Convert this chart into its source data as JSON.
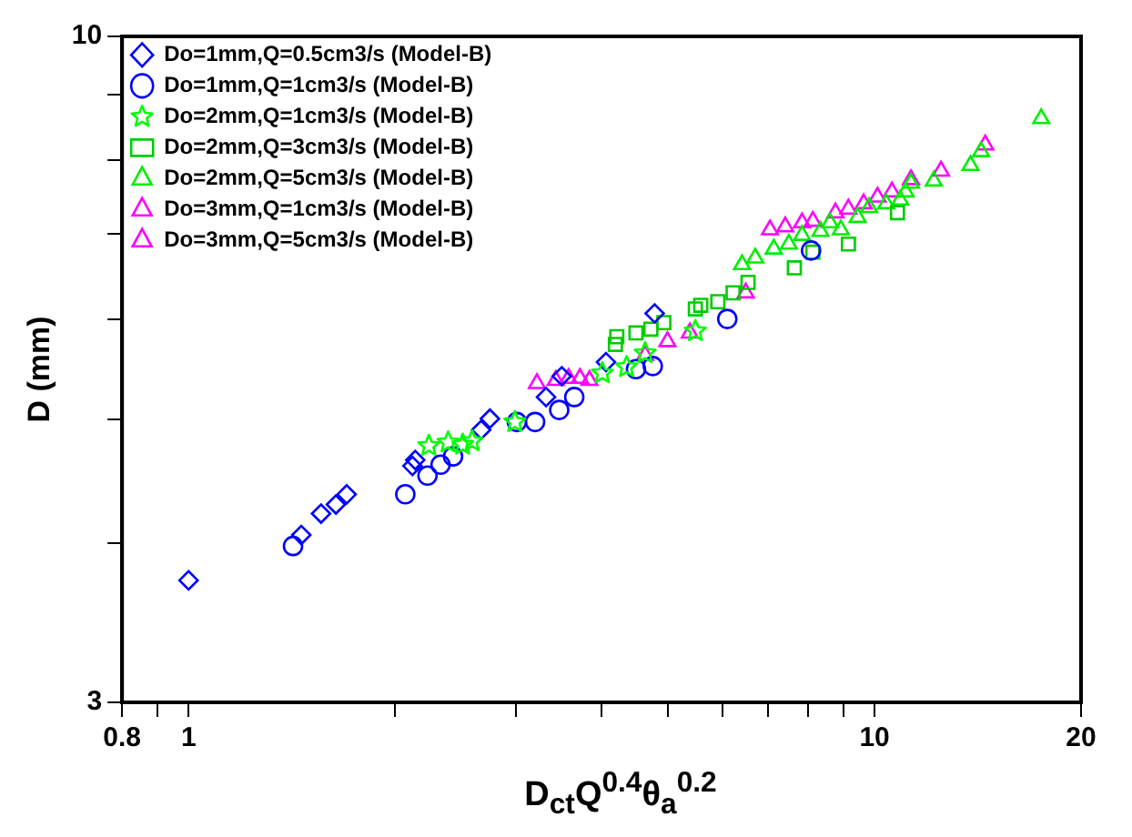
{
  "chart_data": {
    "type": "scatter",
    "xlabel": "D$_{ct}$Q$^{0.4}$θ$_{a}$$^{0.2}$",
    "ylabel": "D (mm)",
    "log": "xy",
    "grid": false,
    "legend": "top left",
    "xlim": [
      0.8,
      20.0
    ],
    "xticks": [
      0.8,
      {
        "value": 0.9,
        "label": null
      },
      1,
      {
        "value": 2,
        "label": null
      },
      {
        "value": 3,
        "label": null
      },
      {
        "value": 4,
        "label": null
      },
      {
        "value": 5,
        "label": null
      },
      {
        "value": 6,
        "label": null
      },
      {
        "value": 7,
        "label": null
      },
      {
        "value": 8,
        "label": null
      },
      {
        "value": 9,
        "label": null
      },
      10,
      20
    ],
    "ylim": [
      3,
      10
    ],
    "yticks": [
      3,
      {
        "value": 4,
        "label": null
      },
      {
        "value": 5,
        "label": null
      },
      {
        "value": 6,
        "label": null
      },
      {
        "value": 7,
        "label": null
      },
      {
        "value": 8,
        "label": null
      },
      {
        "value": 9,
        "label": null
      },
      10
    ],
    "series": [
      {
        "name": "Do=1mm,Q=0.5cm3/s (Model-B)",
        "color": "#0000ff",
        "marker": "diamond",
        "x": [
          1.0,
          1.46,
          1.56,
          1.64,
          1.7,
          2.12,
          2.14,
          2.67,
          2.75,
          3.32,
          3.5,
          4.06,
          4.78
        ],
        "values": [
          3.74,
          4.06,
          4.22,
          4.29,
          4.37,
          4.6,
          4.65,
          4.91,
          5.01,
          5.21,
          5.41,
          5.55,
          6.06
        ]
      },
      {
        "name": "Do=1mm,Q=1cm3/s (Model-B)",
        "color": "#0000ff",
        "marker": "circle",
        "x": [
          1.42,
          2.07,
          2.23,
          2.33,
          2.43,
          3.01,
          3.2,
          3.47,
          3.65,
          4.49,
          4.75,
          6.1,
          8.08
        ],
        "values": [
          3.98,
          4.37,
          4.52,
          4.61,
          4.68,
          4.98,
          4.98,
          5.09,
          5.21,
          5.48,
          5.51,
          6.0,
          6.79
        ]
      },
      {
        "name": "Do=2mm,Q=1cm3/s (Model-B)",
        "color": "#00ff00",
        "marker": "star",
        "x": [
          2.24,
          2.39,
          2.51,
          2.59,
          2.99,
          4.01,
          4.35,
          4.63,
          5.48
        ],
        "values": [
          4.77,
          4.8,
          4.78,
          4.81,
          4.98,
          5.44,
          5.5,
          5.64,
          5.87
        ]
      },
      {
        "name": "Do=2mm,Q=3cm3/s (Model-B)",
        "color": "#00cc00",
        "marker": "square",
        "x": [
          4.19,
          4.21,
          4.49,
          4.72,
          4.93,
          5.48,
          5.58,
          5.91,
          6.22,
          6.54,
          7.64,
          8.13,
          9.16,
          10.8
        ],
        "values": [
          5.73,
          5.81,
          5.85,
          5.89,
          5.96,
          6.11,
          6.15,
          6.19,
          6.29,
          6.41,
          6.58,
          6.77,
          6.87,
          7.27
        ]
      },
      {
        "name": "Do=2mm,Q=5cm3/s (Model-B)",
        "color": "#00ee00",
        "marker": "triangle",
        "x": [
          6.41,
          6.7,
          7.13,
          7.5,
          7.84,
          8.34,
          8.61,
          8.93,
          9.45,
          9.82,
          10.4,
          10.9,
          11.1,
          11.3,
          12.2,
          13.8,
          14.3,
          17.5
        ],
        "values": [
          6.62,
          6.7,
          6.81,
          6.87,
          6.98,
          7.03,
          7.14,
          7.05,
          7.21,
          7.34,
          7.39,
          7.44,
          7.55,
          7.67,
          7.7,
          7.92,
          8.12,
          8.62
        ]
      },
      {
        "name": "Do=3mm,Q=1cm3/s (Model-B)",
        "color": "#ff00ff",
        "marker": "triangle",
        "x": [
          3.22,
          3.43,
          3.58,
          3.72,
          3.84,
          4.63,
          4.99,
          5.38,
          6.49
        ],
        "values": [
          5.34,
          5.37,
          5.39,
          5.39,
          5.37,
          5.62,
          5.76,
          5.85,
          6.29
        ]
      },
      {
        "name": "Do=3mm,Q=5cm3/s (Model-B)",
        "color": "#ff00ff",
        "marker": "triangle",
        "x": [
          7.04,
          7.41,
          7.84,
          8.13,
          8.77,
          9.16,
          9.64,
          10.1,
          10.6,
          11.3,
          12.5,
          14.5
        ],
        "values": [
          7.05,
          7.09,
          7.14,
          7.16,
          7.27,
          7.32,
          7.39,
          7.48,
          7.55,
          7.72,
          7.84,
          8.22
        ]
      }
    ]
  }
}
